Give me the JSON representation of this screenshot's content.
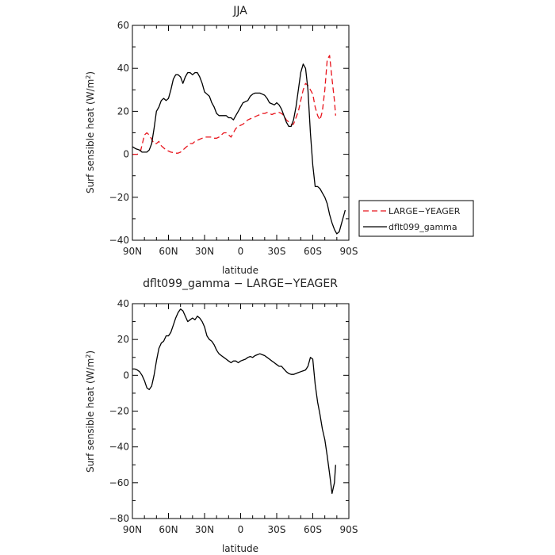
{
  "chart_data": [
    {
      "type": "line",
      "title": "JJA",
      "xlabel": "latitude",
      "ylabel": "Surf sensible heat (W/m²)",
      "ylabel_main": "Surf sensible heat (W/m",
      "ylabel_sup": "2",
      "ylabel_end": ")",
      "xlim": [
        90,
        -90
      ],
      "ylim": [
        -40,
        60
      ],
      "xticks": [
        90,
        60,
        30,
        0,
        -30,
        -60,
        -90
      ],
      "xtick_labels": [
        "90N",
        "60N",
        "30N",
        "0",
        "30S",
        "60S",
        "90S"
      ],
      "yticks": [
        -40,
        -20,
        0,
        20,
        40,
        60
      ],
      "ytick_labels": [
        "−40",
        "−20",
        "0",
        "20",
        "40",
        "60"
      ],
      "legend": {
        "placement": "right",
        "entries": [
          "LARGE−YEAGER",
          "dflt099_gamma"
        ]
      },
      "series": [
        {
          "name": "LARGE−YEAGER",
          "color": "#e8141c",
          "dash": "dashed",
          "x": [
            90,
            86,
            83,
            80,
            78,
            76,
            74,
            72,
            70,
            68,
            66,
            64,
            62,
            60,
            58,
            56,
            54,
            52,
            50,
            48,
            46,
            44,
            42,
            40,
            38,
            36,
            34,
            32,
            30,
            28,
            26,
            24,
            22,
            20,
            18,
            16,
            14,
            12,
            10,
            8,
            6,
            4,
            2,
            0,
            -2,
            -4,
            -6,
            -8,
            -10,
            -12,
            -14,
            -16,
            -18,
            -20,
            -22,
            -24,
            -26,
            -28,
            -30,
            -32,
            -34,
            -36,
            -38,
            -40,
            -42,
            -44,
            -46,
            -48,
            -50,
            -52,
            -54,
            -56,
            -58,
            -60,
            -62,
            -64,
            -66,
            -68,
            -70,
            -72,
            -74,
            -76,
            -78,
            -79
          ],
          "values": [
            0,
            0,
            2,
            9,
            10,
            9,
            7,
            5,
            5,
            6,
            4,
            3,
            2,
            1.5,
            1,
            0.8,
            0.5,
            0.5,
            1,
            2,
            3,
            4,
            5,
            5,
            6,
            6.5,
            7,
            7.5,
            8,
            8,
            8,
            8,
            7.5,
            7.5,
            8,
            9,
            10,
            10,
            9,
            8,
            10,
            12,
            13,
            13.5,
            14,
            15,
            16,
            16.5,
            17,
            17.5,
            18,
            18.5,
            19,
            19,
            19.5,
            19,
            18.5,
            19,
            19,
            19.5,
            19,
            18,
            16,
            15,
            14,
            14,
            17,
            20,
            25,
            30,
            33,
            32,
            30,
            28,
            22,
            18,
            16,
            20,
            30,
            44,
            46,
            35,
            25,
            18
          ]
        },
        {
          "name": "dflt099_gamma",
          "color": "#000000",
          "dash": "solid",
          "x": [
            90,
            87,
            84,
            82,
            80,
            78,
            76,
            74,
            72,
            70,
            68,
            66,
            64,
            62,
            60,
            58,
            56,
            54,
            52,
            50,
            48,
            46,
            44,
            42,
            40,
            38,
            36,
            34,
            32,
            30,
            28,
            26,
            24,
            22,
            20,
            18,
            16,
            14,
            12,
            10,
            8,
            6,
            4,
            2,
            0,
            -2,
            -4,
            -6,
            -8,
            -10,
            -12,
            -14,
            -16,
            -18,
            -20,
            -22,
            -24,
            -26,
            -28,
            -30,
            -32,
            -34,
            -36,
            -38,
            -40,
            -42,
            -44,
            -46,
            -48,
            -50,
            -52,
            -54,
            -56,
            -58,
            -60,
            -62,
            -64,
            -66,
            -68,
            -70,
            -72,
            -74,
            -76,
            -78,
            -80,
            -82,
            -84,
            -86,
            -87
          ],
          "values": [
            3.5,
            2.5,
            2,
            1,
            1,
            1,
            2,
            5,
            12,
            20,
            22,
            25,
            26,
            25,
            26,
            30,
            35,
            37,
            37,
            36,
            33,
            36,
            38,
            38,
            37,
            38,
            38,
            36,
            33,
            29,
            28,
            27,
            24,
            22,
            19,
            18,
            18,
            18,
            18,
            17,
            17,
            16,
            18,
            20,
            22,
            24,
            24.5,
            25,
            27,
            28,
            28.5,
            28.5,
            28.5,
            28,
            27.5,
            26,
            24,
            23.5,
            23,
            24,
            23,
            21,
            18,
            15,
            13,
            13,
            16,
            22,
            30,
            38,
            42,
            40,
            30,
            10,
            -5,
            -15,
            -15,
            -16,
            -18,
            -20,
            -23,
            -28,
            -32,
            -35,
            -37,
            -36,
            -32,
            -28,
            -26
          ]
        }
      ]
    },
    {
      "type": "line",
      "title": "dflt099_gamma − LARGE−YEAGER",
      "xlabel": "latitude",
      "ylabel": "Surf sensible heat (W/m²)",
      "ylabel_main": "Surf sensible heat (W/m",
      "ylabel_sup": "2",
      "ylabel_end": ")",
      "xlim": [
        90,
        -90
      ],
      "ylim": [
        -80,
        40
      ],
      "xticks": [
        90,
        60,
        30,
        0,
        -30,
        -60,
        -90
      ],
      "xtick_labels": [
        "90N",
        "60N",
        "30N",
        "0",
        "30S",
        "60S",
        "90S"
      ],
      "yticks": [
        -80,
        -60,
        -40,
        -20,
        0,
        20,
        40
      ],
      "ytick_labels": [
        "−80",
        "−60",
        "−40",
        "−20",
        "0",
        "20",
        "40"
      ],
      "series": [
        {
          "color": "#000000",
          "dash": "solid",
          "x": [
            90,
            88,
            86,
            84,
            82,
            80,
            78,
            76,
            74,
            72,
            70,
            68,
            66,
            64,
            62,
            60,
            58,
            56,
            54,
            52,
            50,
            48,
            46,
            44,
            42,
            40,
            38,
            36,
            34,
            32,
            30,
            28,
            26,
            24,
            22,
            20,
            18,
            16,
            14,
            12,
            10,
            8,
            6,
            4,
            2,
            0,
            -2,
            -4,
            -6,
            -8,
            -10,
            -12,
            -14,
            -16,
            -18,
            -20,
            -22,
            -24,
            -26,
            -28,
            -30,
            -32,
            -34,
            -36,
            -38,
            -40,
            -42,
            -44,
            -46,
            -48,
            -50,
            -52,
            -54,
            -56,
            -58,
            -60,
            -62,
            -64,
            -66,
            -68,
            -70,
            -72,
            -74,
            -76,
            -78,
            -79
          ],
          "values": [
            3.5,
            3.5,
            3,
            2,
            0,
            -3,
            -7,
            -8,
            -6,
            0,
            8,
            15,
            18,
            19,
            22,
            22,
            24,
            28,
            32,
            35,
            37,
            36,
            33,
            30,
            31,
            32,
            31,
            33,
            32,
            30,
            27,
            22,
            20,
            19,
            17,
            14,
            12,
            11,
            10,
            9,
            8,
            7,
            8,
            8,
            7,
            8,
            8.5,
            9,
            10,
            10.5,
            10,
            11,
            11.5,
            12,
            11.5,
            11,
            10,
            9,
            8,
            7,
            6,
            5,
            5,
            3.5,
            2,
            1,
            0.5,
            0.5,
            1,
            1.5,
            2,
            2.5,
            3,
            5,
            10,
            9,
            -5,
            -15,
            -22,
            -30,
            -36,
            -45,
            -55,
            -66,
            -60,
            -50
          ]
        }
      ]
    }
  ]
}
